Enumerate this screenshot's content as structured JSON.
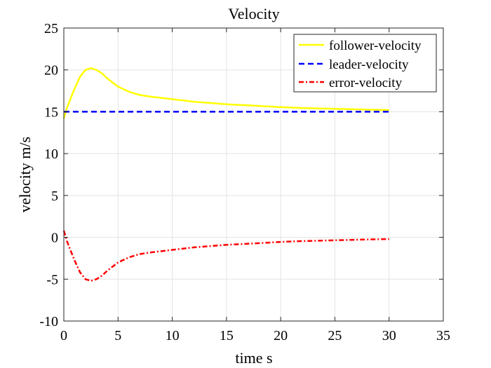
{
  "chart_data": {
    "type": "line",
    "title": "Velocity",
    "xlabel": "time s",
    "ylabel": "velocity m/s",
    "xlim": [
      0,
      35
    ],
    "ylim": [
      -10,
      25
    ],
    "xticks": [
      0,
      5,
      10,
      15,
      20,
      25,
      30,
      35
    ],
    "yticks": [
      -10,
      -5,
      0,
      5,
      10,
      15,
      20,
      25
    ],
    "xtick_labels": [
      "0",
      "5",
      "10",
      "15",
      "20",
      "25",
      "30",
      "35"
    ],
    "ytick_labels": [
      "-10",
      "-5",
      "0",
      "5",
      "10",
      "15",
      "20",
      "25"
    ],
    "grid": true,
    "legend_position": "top-right",
    "series": [
      {
        "name": "follower-velocity",
        "color": "#ffff00",
        "dash": "solid",
        "x": [
          0,
          0.3,
          0.6,
          1.0,
          1.5,
          2.0,
          2.5,
          3.0,
          3.5,
          4.0,
          5.0,
          6.0,
          7.0,
          8.0,
          10.0,
          12.0,
          15.0,
          18.0,
          20.0,
          22.0,
          25.0,
          28.0,
          30.0
        ],
        "y": [
          14.2,
          15.5,
          16.5,
          17.8,
          19.2,
          20.0,
          20.2,
          20.0,
          19.6,
          19.0,
          18.0,
          17.4,
          17.0,
          16.8,
          16.5,
          16.2,
          15.9,
          15.7,
          15.55,
          15.45,
          15.35,
          15.25,
          15.2
        ]
      },
      {
        "name": "leader-velocity",
        "color": "#0000ff",
        "dash": "dashed",
        "x": [
          0,
          30
        ],
        "y": [
          15,
          15
        ]
      },
      {
        "name": "error-velocity",
        "color": "#ff0000",
        "dash": "dashdot",
        "x": [
          0,
          0.3,
          0.6,
          1.0,
          1.5,
          2.0,
          2.5,
          3.0,
          3.5,
          4.0,
          5.0,
          6.0,
          7.0,
          8.0,
          10.0,
          12.0,
          15.0,
          18.0,
          20.0,
          22.0,
          25.0,
          28.0,
          30.0
        ],
        "y": [
          0.8,
          -0.5,
          -1.5,
          -2.8,
          -4.2,
          -5.0,
          -5.2,
          -5.0,
          -4.6,
          -4.0,
          -3.0,
          -2.4,
          -2.0,
          -1.8,
          -1.5,
          -1.2,
          -0.9,
          -0.7,
          -0.55,
          -0.45,
          -0.35,
          -0.25,
          -0.2
        ]
      }
    ]
  }
}
